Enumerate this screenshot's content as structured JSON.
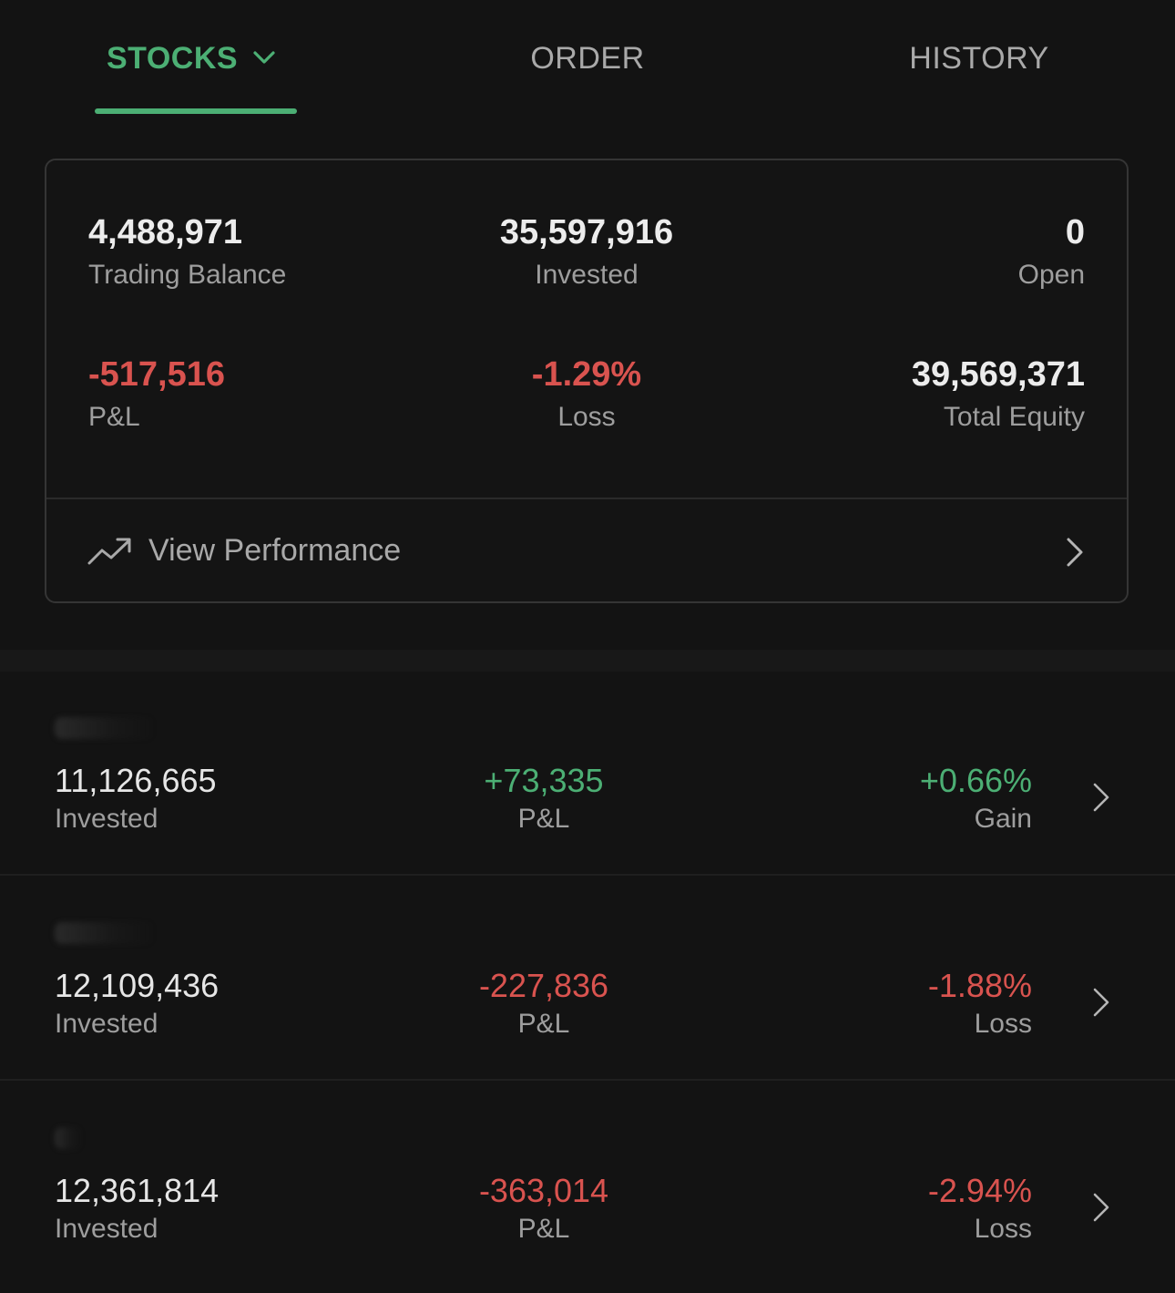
{
  "tabs": {
    "stocks": "STOCKS",
    "order": "ORDER",
    "history": "HISTORY"
  },
  "summary": {
    "trading_balance": {
      "value": "4,488,971",
      "label": "Trading Balance"
    },
    "invested": {
      "value": "35,597,916",
      "label": "Invested"
    },
    "open": {
      "value": "0",
      "label": "Open"
    },
    "pnl": {
      "value": "-517,516",
      "label": "P&L"
    },
    "loss": {
      "value": "-1.29%",
      "label": "Loss"
    },
    "total_equity": {
      "value": "39,569,371",
      "label": "Total Equity"
    },
    "view_performance": "View Performance"
  },
  "colors": {
    "accent_green": "#4caf74",
    "loss_red": "#d9534f",
    "background": "#131313"
  },
  "icons": {
    "tab_dropdown": "chevron-down-icon",
    "performance": "trending-up-icon",
    "row_arrow": "chevron-right-icon"
  },
  "holdings": [
    {
      "invested": "11,126,665",
      "invested_label": "Invested",
      "pnl": "+73,335",
      "pnl_label": "P&L",
      "change": "+0.66%",
      "change_label": "Gain",
      "direction": "gain"
    },
    {
      "invested": "12,109,436",
      "invested_label": "Invested",
      "pnl": "-227,836",
      "pnl_label": "P&L",
      "change": "-1.88%",
      "change_label": "Loss",
      "direction": "loss"
    },
    {
      "invested": "12,361,814",
      "invested_label": "Invested",
      "pnl": "-363,014",
      "pnl_label": "P&L",
      "change": "-2.94%",
      "change_label": "Loss",
      "direction": "loss"
    }
  ]
}
